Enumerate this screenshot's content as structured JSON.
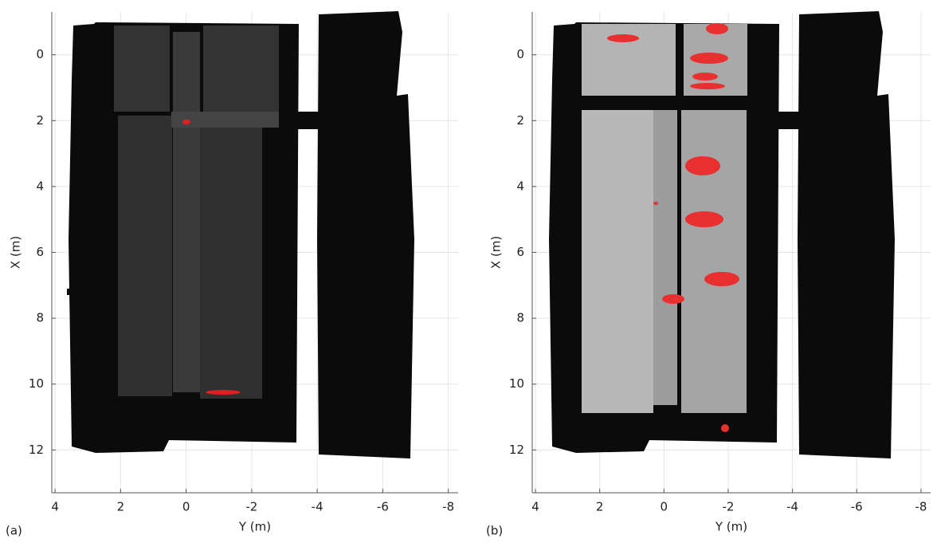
{
  "chart_data": [
    {
      "type": "image",
      "panel_label": "(a)",
      "xlabel": "Y (m)",
      "ylabel": "X (m)",
      "xlim": [
        4.1,
        -8.3
      ],
      "ylim": [
        -1.3,
        13.3
      ],
      "yaxis_reversed": true,
      "xticks": [
        4,
        2,
        0,
        -2,
        -4,
        -6,
        -8
      ],
      "yticks": [
        0,
        2,
        4,
        6,
        8,
        10,
        12
      ],
      "grid": true
    },
    {
      "type": "image",
      "panel_label": "(b)",
      "xlabel": "Y (m)",
      "ylabel": "X (m)",
      "xlim": [
        4.1,
        -8.3
      ],
      "ylim": [
        -1.3,
        13.3
      ],
      "yaxis_reversed": true,
      "xticks": [
        4,
        2,
        0,
        -2,
        -4,
        -6,
        -8
      ],
      "yticks": [
        0,
        2,
        4,
        6,
        8,
        10,
        12
      ],
      "grid": true
    }
  ]
}
